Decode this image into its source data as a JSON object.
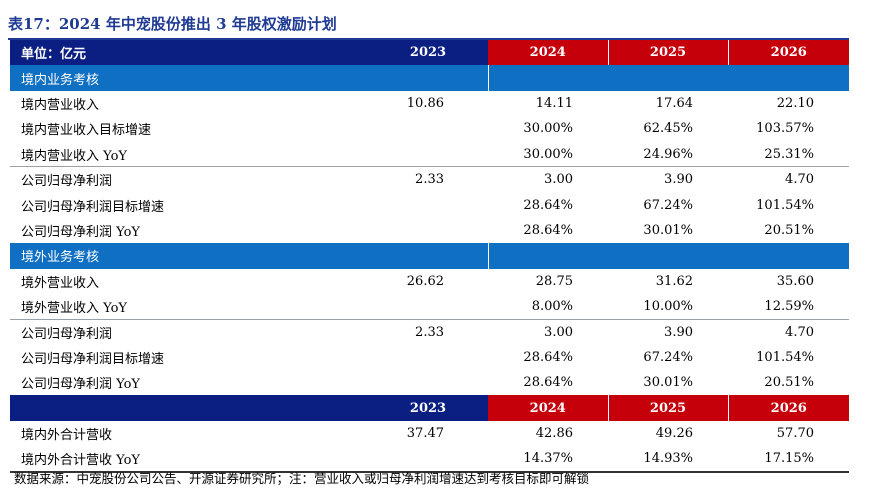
{
  "title": "表17：2024 年中宠股份推出 3 年股权激励计划",
  "header": {
    "unit_label": "单位：亿元",
    "years": [
      "2023",
      "2024",
      "2025",
      "2026"
    ]
  },
  "section_domestic": "境内业务考核",
  "domestic_rows": [
    {
      "label": "境内营业收入",
      "v2023": "10.86",
      "v2024": "14.11",
      "v2025": "17.64",
      "v2026": "22.10"
    },
    {
      "label": "境内营业收入目标增速",
      "v2023": "",
      "v2024": "30.00%",
      "v2025": "62.45%",
      "v2026": "103.57%"
    },
    {
      "label": "境内营业收入 YoY",
      "v2023": "",
      "v2024": "30.00%",
      "v2025": "24.96%",
      "v2026": "25.31%"
    },
    {
      "label": "公司归母净利润",
      "v2023": "2.33",
      "v2024": "3.00",
      "v2025": "3.90",
      "v2026": "4.70"
    },
    {
      "label": "公司归母净利润目标增速",
      "v2023": "",
      "v2024": "28.64%",
      "v2025": "67.24%",
      "v2026": "101.54%"
    },
    {
      "label": "公司归母净利润 YoY",
      "v2023": "",
      "v2024": "28.64%",
      "v2025": "30.01%",
      "v2026": "20.51%"
    }
  ],
  "section_overseas": "境外业务考核",
  "overseas_rows": [
    {
      "label": "境外营业收入",
      "v2023": "26.62",
      "v2024": "28.75",
      "v2025": "31.62",
      "v2026": "35.60"
    },
    {
      "label": "境外营业收入 YoY",
      "v2023": "",
      "v2024": "8.00%",
      "v2025": "10.00%",
      "v2026": "12.59%"
    },
    {
      "label": "公司归母净利润",
      "v2023": "2.33",
      "v2024": "3.00",
      "v2025": "3.90",
      "v2026": "4.70"
    },
    {
      "label": "公司归母净利润目标增速",
      "v2023": "",
      "v2024": "28.64%",
      "v2025": "67.24%",
      "v2026": "101.54%"
    },
    {
      "label": "公司归母净利润 YoY",
      "v2023": "",
      "v2024": "28.64%",
      "v2025": "30.01%",
      "v2026": "20.51%"
    }
  ],
  "combined_rows": [
    {
      "label": "境内外合计营收",
      "v2023": "37.47",
      "v2024": "42.86",
      "v2025": "49.26",
      "v2026": "57.70"
    },
    {
      "label": "境内外合计营收 YoY",
      "v2023": "",
      "v2024": "14.37%",
      "v2025": "14.93%",
      "v2026": "17.15%"
    }
  ],
  "footer": "数据来源：中宠股份公司公告、开源证券研究所；注：营业收入或归母净利润增速达到考核目标即可解锁",
  "colors": {
    "navy": "#0b1f82",
    "red": "#c6000b",
    "blue": "#0f6fc2",
    "title": "#1f3a93"
  }
}
